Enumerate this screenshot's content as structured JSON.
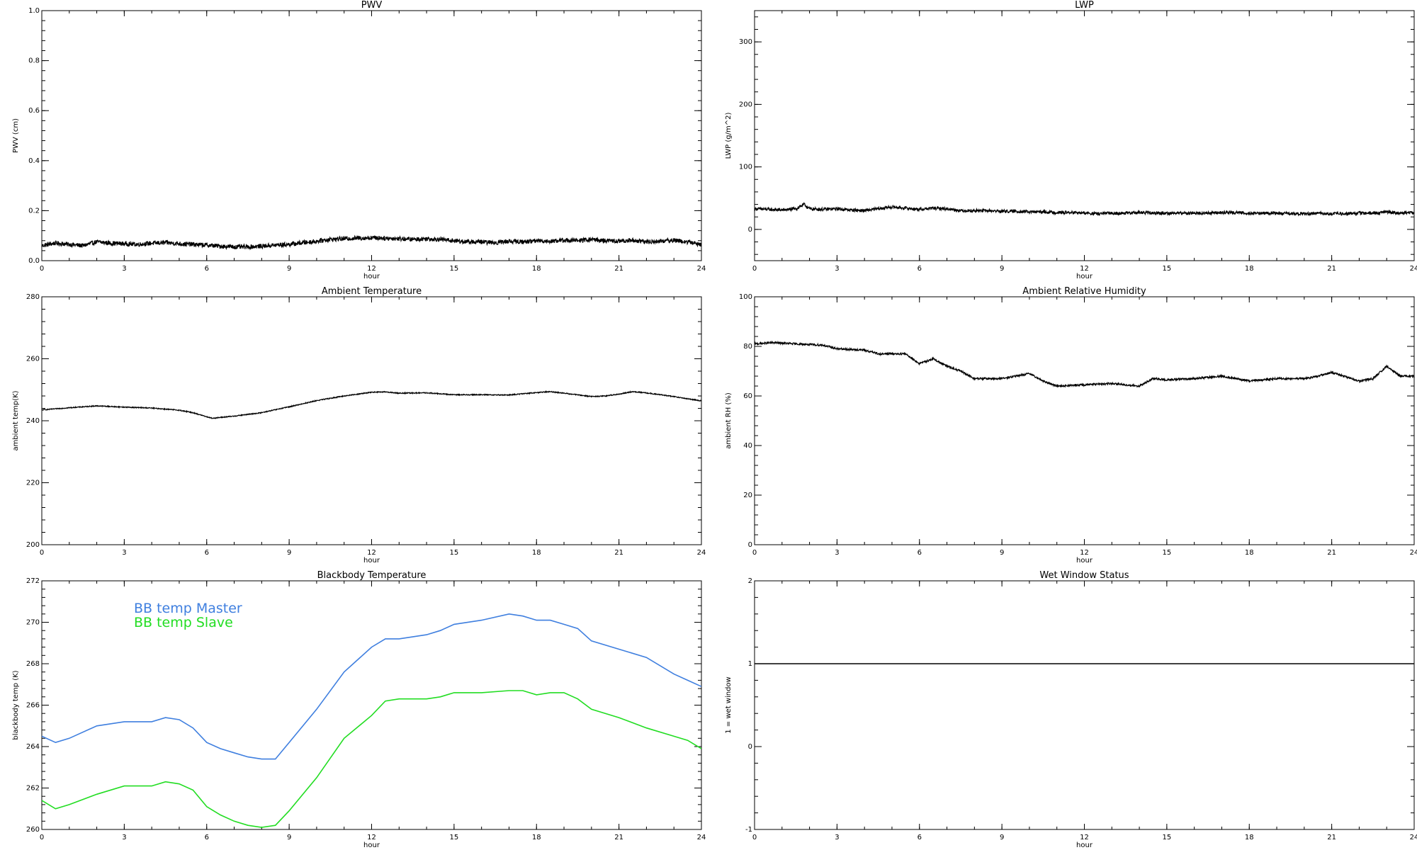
{
  "chart_data": [
    {
      "type": "line",
      "title": "PWV",
      "xlabel": "hour",
      "ylabel": "PWV (cm)",
      "xlim": [
        0,
        24
      ],
      "ylim": [
        0,
        1.0
      ],
      "xticks": [
        "0",
        "3",
        "6",
        "9",
        "12",
        "15",
        "18",
        "21",
        "24"
      ],
      "yticks": [
        "0.0",
        "0.2",
        "0.4",
        "0.6",
        "0.8",
        "1.0"
      ],
      "grid": false,
      "series": [
        {
          "color": "#000000",
          "noisy": true,
          "noise": 0.009,
          "x": [
            0,
            0.5,
            1,
            1.5,
            2,
            2.5,
            3,
            3.5,
            4,
            4.5,
            5,
            5.5,
            6,
            6.5,
            7,
            7.5,
            8,
            8.5,
            9,
            9.5,
            10,
            10.5,
            11,
            11.5,
            12,
            12.5,
            13,
            13.5,
            14,
            14.5,
            15,
            15.5,
            16,
            16.5,
            17,
            17.5,
            18,
            18.5,
            19,
            19.5,
            20,
            20.5,
            21,
            21.5,
            22,
            22.5,
            23,
            23.5,
            24
          ],
          "y": [
            0.06,
            0.07,
            0.065,
            0.06,
            0.075,
            0.07,
            0.068,
            0.065,
            0.07,
            0.072,
            0.068,
            0.065,
            0.062,
            0.058,
            0.055,
            0.055,
            0.058,
            0.062,
            0.065,
            0.072,
            0.078,
            0.085,
            0.088,
            0.09,
            0.092,
            0.09,
            0.088,
            0.085,
            0.088,
            0.085,
            0.08,
            0.075,
            0.075,
            0.072,
            0.078,
            0.075,
            0.08,
            0.078,
            0.082,
            0.08,
            0.085,
            0.08,
            0.078,
            0.082,
            0.075,
            0.078,
            0.082,
            0.075,
            0.065
          ]
        }
      ]
    },
    {
      "type": "line",
      "title": "LWP",
      "xlabel": "hour",
      "ylabel": "LWP (g/m^2)",
      "xlim": [
        0,
        24
      ],
      "ylim": [
        -50,
        350
      ],
      "xticks": [
        "0",
        "3",
        "6",
        "9",
        "12",
        "15",
        "18",
        "21",
        "24"
      ],
      "yticks": [
        "0",
        "100",
        "200",
        "300"
      ],
      "ytickvalues": [
        0,
        100,
        200,
        300
      ],
      "grid": false,
      "series": [
        {
          "color": "#000000",
          "noisy": true,
          "noise": 2.5,
          "x": [
            0,
            0.5,
            1,
            1.5,
            1.8,
            2,
            2.5,
            3,
            3.5,
            4,
            4.5,
            5,
            5.5,
            6,
            6.5,
            7,
            7.5,
            8,
            8.5,
            9,
            9.5,
            10,
            10.5,
            11,
            11.5,
            12,
            12.5,
            13,
            13.5,
            14,
            14.5,
            15,
            15.5,
            16,
            16.5,
            17,
            17.5,
            18,
            18.5,
            19,
            19.5,
            20,
            20.5,
            21,
            21.5,
            22,
            22.5,
            23,
            23.5,
            24
          ],
          "y": [
            33,
            32,
            31,
            33,
            40,
            33,
            32,
            33,
            31,
            30,
            33,
            36,
            34,
            32,
            34,
            33,
            30,
            30,
            30,
            29,
            29,
            28,
            28,
            27,
            27,
            26,
            25,
            26,
            26,
            27,
            26,
            26,
            26,
            26,
            26,
            27,
            27,
            26,
            26,
            26,
            25,
            25,
            26,
            25,
            25,
            26,
            26,
            28,
            26,
            27
          ]
        }
      ]
    },
    {
      "type": "line",
      "title": "Ambient Temperature",
      "xlabel": "hour",
      "ylabel": "ambient temp(K)",
      "xlim": [
        0,
        24
      ],
      "ylim": [
        200,
        280
      ],
      "xticks": [
        "0",
        "3",
        "6",
        "9",
        "12",
        "15",
        "18",
        "21",
        "24"
      ],
      "yticks": [
        "200",
        "220",
        "240",
        "260",
        "280"
      ],
      "ytickvalues": [
        200,
        220,
        240,
        260,
        280
      ],
      "grid": false,
      "series": [
        {
          "color": "#000000",
          "noisy": true,
          "noise": 0.15,
          "x": [
            0,
            1,
            2,
            3,
            4,
            5,
            5.5,
            6,
            6.2,
            7,
            8,
            9,
            10,
            11,
            12,
            12.5,
            13,
            14,
            15,
            16,
            17,
            18,
            18.5,
            19,
            20,
            20.5,
            21,
            21.5,
            22,
            23,
            24
          ],
          "y": [
            243.5,
            244.2,
            244.8,
            244.4,
            244.1,
            243.4,
            242.6,
            241.3,
            240.8,
            241.5,
            242.6,
            244.5,
            246.5,
            248,
            249.2,
            249.3,
            248.9,
            249,
            248.4,
            248.4,
            248.3,
            249.1,
            249.4,
            248.9,
            247.8,
            248,
            248.6,
            249.4,
            249,
            247.8,
            246.4
          ]
        }
      ]
    },
    {
      "type": "line",
      "title": "Ambient Relative Humidity",
      "xlabel": "hour",
      "ylabel": "ambient RH (%)",
      "xlim": [
        0,
        24
      ],
      "ylim": [
        0,
        100
      ],
      "xticks": [
        "0",
        "3",
        "6",
        "9",
        "12",
        "15",
        "18",
        "21",
        "24"
      ],
      "yticks": [
        "0",
        "20",
        "40",
        "60",
        "80",
        "100"
      ],
      "ytickvalues": [
        0,
        20,
        40,
        60,
        80,
        100
      ],
      "grid": false,
      "series": [
        {
          "color": "#000000",
          "noisy": true,
          "noise": 0.4,
          "x": [
            0,
            0.7,
            1.5,
            2.5,
            3,
            4,
            4.5,
            5,
            5.5,
            6,
            6.5,
            7,
            7.5,
            8,
            9,
            10,
            10.5,
            11,
            12,
            13,
            14,
            14.5,
            15,
            16,
            17,
            18,
            19,
            20,
            20.5,
            21,
            22,
            22.5,
            23,
            23.5,
            24
          ],
          "y": [
            81,
            81.5,
            81,
            80.5,
            79,
            78.5,
            77,
            77,
            77,
            73,
            75,
            72,
            70,
            67,
            67,
            69,
            66,
            64,
            64.5,
            65,
            64,
            67,
            66.5,
            67,
            68,
            66,
            67,
            67,
            68,
            69.5,
            66,
            67,
            72,
            68,
            68
          ]
        }
      ]
    },
    {
      "type": "line",
      "title": "Blackbody Temperature",
      "xlabel": "hour",
      "ylabel": "blackbody temp (K)",
      "xlim": [
        0,
        24
      ],
      "ylim": [
        260,
        272
      ],
      "xticks": [
        "0",
        "3",
        "6",
        "9",
        "12",
        "15",
        "18",
        "21",
        "24"
      ],
      "yticks": [
        "260",
        "262",
        "264",
        "266",
        "268",
        "270",
        "272"
      ],
      "ytickvalues": [
        260,
        262,
        264,
        266,
        268,
        270,
        272
      ],
      "grid": false,
      "legend": "top-left",
      "series": [
        {
          "name": "BB temp Master",
          "color": "#3f7fdf",
          "noisy": false,
          "x": [
            0,
            0.5,
            1,
            2,
            3,
            4,
            4.5,
            5,
            5.5,
            6,
            6.5,
            7,
            7.5,
            8,
            8.5,
            9,
            10,
            11,
            12,
            12.5,
            13,
            14,
            14.5,
            15,
            16,
            17,
            17.5,
            18,
            18.5,
            19,
            19.5,
            20,
            21,
            22,
            23,
            23.5,
            24
          ],
          "y": [
            264.5,
            264.2,
            264.4,
            265,
            265.2,
            265.2,
            265.4,
            265.3,
            264.9,
            264.2,
            263.9,
            263.7,
            263.5,
            263.4,
            263.4,
            264.2,
            265.8,
            267.6,
            268.8,
            269.2,
            269.2,
            269.4,
            269.6,
            269.9,
            270.1,
            270.4,
            270.3,
            270.1,
            270.1,
            269.9,
            269.7,
            269.1,
            268.7,
            268.3,
            267.5,
            267.2,
            266.9
          ]
        },
        {
          "name": "BB temp Slave",
          "color": "#22dd22",
          "noisy": false,
          "x": [
            0,
            0.5,
            1,
            2,
            3,
            4,
            4.5,
            5,
            5.5,
            6,
            6.5,
            7,
            7.5,
            8,
            8.5,
            9,
            10,
            11,
            12,
            12.5,
            13,
            14,
            14.5,
            15,
            16,
            17,
            17.5,
            18,
            18.5,
            19,
            19.5,
            20,
            21,
            22,
            23,
            23.5,
            24
          ],
          "y": [
            261.4,
            261,
            261.2,
            261.7,
            262.1,
            262.1,
            262.3,
            262.2,
            261.9,
            261.1,
            260.7,
            260.4,
            260.2,
            260.1,
            260.2,
            260.9,
            262.5,
            264.4,
            265.5,
            266.2,
            266.3,
            266.3,
            266.4,
            266.6,
            266.6,
            266.7,
            266.7,
            266.5,
            266.6,
            266.6,
            266.3,
            265.8,
            265.4,
            264.9,
            264.5,
            264.3,
            263.9
          ]
        }
      ]
    },
    {
      "type": "line",
      "title": "Wet Window Status",
      "xlabel": "hour",
      "ylabel": "1 = wet window",
      "xlim": [
        0,
        24
      ],
      "ylim": [
        -1,
        2
      ],
      "xticks": [
        "0",
        "3",
        "6",
        "9",
        "12",
        "15",
        "18",
        "21",
        "24"
      ],
      "yticks": [
        "-1",
        "0",
        "1",
        "2"
      ],
      "ytickvalues": [
        -1,
        0,
        1,
        2
      ],
      "grid": false,
      "series": [
        {
          "color": "#000000",
          "noisy": false,
          "x": [
            0,
            24
          ],
          "y": [
            1,
            1
          ]
        }
      ]
    }
  ]
}
